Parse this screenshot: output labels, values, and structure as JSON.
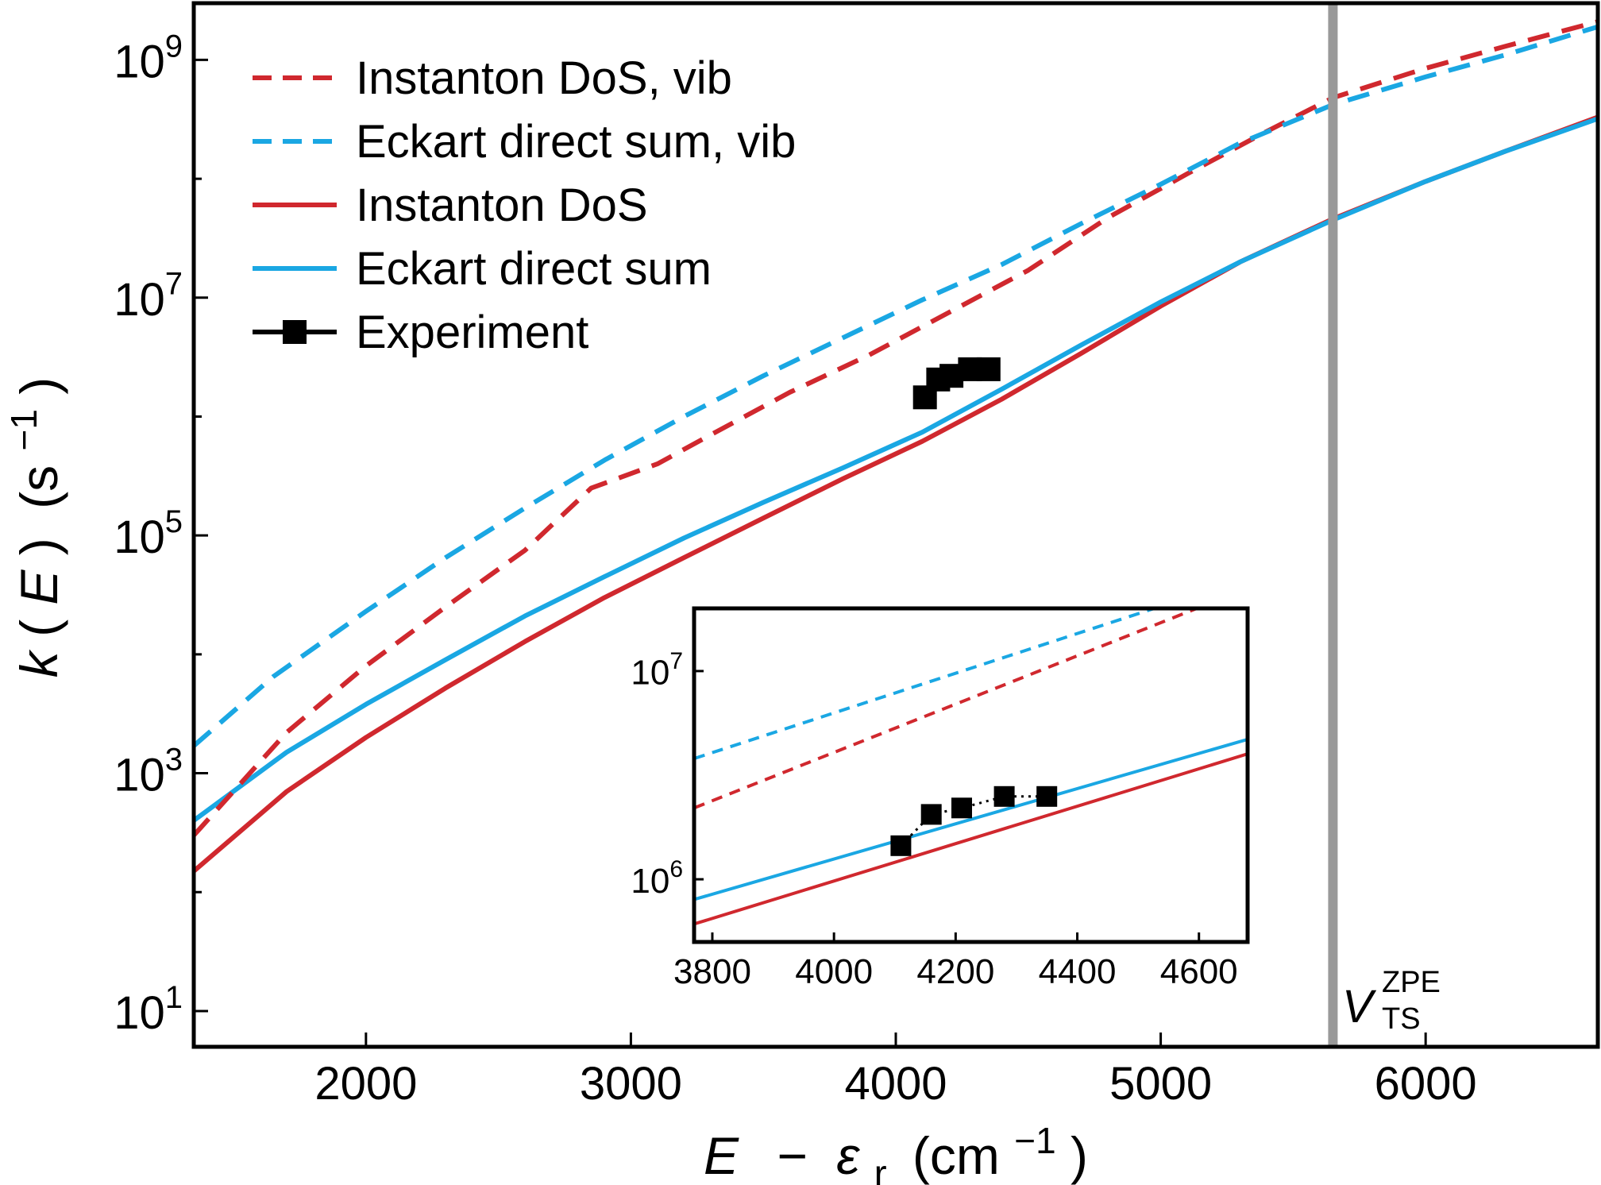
{
  "colors": {
    "red": "#d0282e",
    "blue": "#1aa7e3",
    "black": "#000000",
    "ts_line": "#999999"
  },
  "axes": {
    "xlabel_main": "E",
    "xlabel_minus": "−",
    "xlabel_sym": "ε",
    "xlabel_sub": "r",
    "xlabel_unit_open": "(cm",
    "xlabel_unit_exp": "−1",
    "xlabel_unit_close": ")",
    "ylabel_k": "k",
    "ylabel_open": "(",
    "ylabel_E": "E",
    "ylabel_close": ")",
    "ylabel_unit_open": "(s",
    "ylabel_unit_exp": "−1",
    "ylabel_unit_close": ")",
    "ts_label_v": "V",
    "ts_label_sup": "ZPE",
    "ts_label_sub": "TS"
  },
  "chart_data": [
    {
      "type": "line",
      "panel": "main",
      "xlabel": "E − εr (cm−1)",
      "ylabel": "k(E) (s−1)",
      "xlim": [
        1350,
        6650
      ],
      "ylim": [
        5,
        3000000000
      ],
      "yscale": "log",
      "x_ticks": [
        2000,
        3000,
        4000,
        5000,
        6000
      ],
      "x_tick_labels": [
        "2000",
        "3000",
        "4000",
        "5000",
        "6000"
      ],
      "y_ticks": [
        10,
        1000,
        100000,
        10000000,
        1000000000
      ],
      "y_tick_labels": [
        {
          "base": "10",
          "exp": "1"
        },
        {
          "base": "10",
          "exp": "3"
        },
        {
          "base": "10",
          "exp": "5"
        },
        {
          "base": "10",
          "exp": "7"
        },
        {
          "base": "10",
          "exp": "9"
        }
      ],
      "vline": {
        "x": 5650,
        "label": "V TS ZPE"
      },
      "legend": {
        "position": "top-left",
        "entries": [
          {
            "label": "Instanton DoS, vib",
            "style": "dashed",
            "color": "red"
          },
          {
            "label": "Eckart direct sum, vib",
            "style": "dashed",
            "color": "blue"
          },
          {
            "label": "Instanton DoS",
            "style": "solid",
            "color": "red"
          },
          {
            "label": "Eckart direct sum",
            "style": "solid",
            "color": "blue"
          },
          {
            "label": "Experiment",
            "style": "marker-line",
            "color": "black"
          }
        ]
      },
      "series": [
        {
          "name": "Instanton DoS, vib",
          "style": "dashed",
          "color": "red",
          "x": [
            1350,
            1700,
            2000,
            2300,
            2600,
            2850,
            3100,
            3300,
            3600,
            3900,
            4200,
            4500,
            4800,
            5100,
            5400,
            5650,
            6000,
            6300,
            6650
          ],
          "y": [
            300,
            2200,
            8000,
            25000,
            75000,
            250000,
            400000,
            700000,
            1600000,
            3300000,
            7500000,
            17000000,
            47000000,
            110000000,
            250000000,
            480000000,
            850000000,
            1300000000,
            2100000000
          ]
        },
        {
          "name": "Eckart direct sum, vib",
          "style": "dashed",
          "color": "blue",
          "x": [
            1350,
            1650,
            2000,
            2300,
            2600,
            2900,
            3200,
            3500,
            3800,
            4100,
            4400,
            4700,
            5000,
            5300,
            5650,
            6000,
            6300,
            6650
          ],
          "y": [
            1700,
            6500,
            23000,
            65000,
            170000,
            430000,
            1000000,
            2200000,
            4600000,
            9600000,
            19000000,
            42000000,
            90000000,
            200000000,
            420000000,
            720000000,
            1100000000,
            1900000000
          ]
        },
        {
          "name": "Instanton DoS",
          "style": "solid",
          "color": "red",
          "x": [
            1350,
            1700,
            2000,
            2300,
            2600,
            2900,
            3200,
            3500,
            3800,
            4100,
            4400,
            4700,
            5000,
            5300,
            5650,
            6000,
            6300,
            6650
          ],
          "y": [
            150,
            700,
            2000,
            5200,
            12800,
            30000,
            65000,
            140000,
            300000,
            620000,
            1400000,
            3400000,
            8500000,
            20000000,
            46000000,
            95000000,
            170000000,
            330000000
          ]
        },
        {
          "name": "Eckart direct sum",
          "style": "solid",
          "color": "blue",
          "x": [
            1350,
            1700,
            2000,
            2300,
            2600,
            2900,
            3200,
            3500,
            3800,
            4100,
            4400,
            4700,
            5000,
            5300,
            5650,
            6000,
            6300,
            6650
          ],
          "y": [
            400,
            1500,
            3800,
            9000,
            21000,
            45000,
            95000,
            190000,
            370000,
            740000,
            1700000,
            4000000,
            9200000,
            20000000,
            45000000,
            95000000,
            170000000,
            320000000
          ]
        },
        {
          "name": "Experiment",
          "style": "marker",
          "color": "black",
          "x": [
            4110,
            4160,
            4210,
            4280,
            4350
          ],
          "y": [
            1450000,
            2050000,
            2200000,
            2500000,
            2500000
          ]
        }
      ]
    },
    {
      "type": "line",
      "panel": "inset",
      "xlim": [
        3770,
        4680
      ],
      "ylim": [
        500000,
        20000000
      ],
      "yscale": "log",
      "x_ticks": [
        3800,
        4000,
        4200,
        4400,
        4600
      ],
      "x_tick_labels": [
        "3800",
        "4000",
        "4200",
        "4400",
        "4600"
      ],
      "y_ticks": [
        1000000,
        10000000
      ],
      "y_tick_labels": [
        {
          "base": "10",
          "exp": "6"
        },
        {
          "base": "10",
          "exp": "7"
        }
      ],
      "series": [
        {
          "name": "Instanton DoS, vib",
          "style": "dashed",
          "color": "red",
          "x": [
            3770,
            4680
          ],
          "y": [
            2200000,
            25000000
          ]
        },
        {
          "name": "Eckart direct sum, vib",
          "style": "dashed",
          "color": "blue",
          "x": [
            3770,
            4680
          ],
          "y": [
            3800000,
            28000000
          ]
        },
        {
          "name": "Instanton DoS",
          "style": "solid",
          "color": "red",
          "x": [
            3770,
            4680
          ],
          "y": [
            610000,
            4000000
          ]
        },
        {
          "name": "Eckart direct sum",
          "style": "solid",
          "color": "blue",
          "x": [
            3770,
            4680
          ],
          "y": [
            800000,
            4700000
          ]
        },
        {
          "name": "Experiment",
          "style": "marker-dotted",
          "color": "black",
          "x": [
            4110,
            4160,
            4210,
            4280,
            4350
          ],
          "y": [
            1450000,
            2050000,
            2200000,
            2500000,
            2500000
          ]
        }
      ]
    }
  ]
}
